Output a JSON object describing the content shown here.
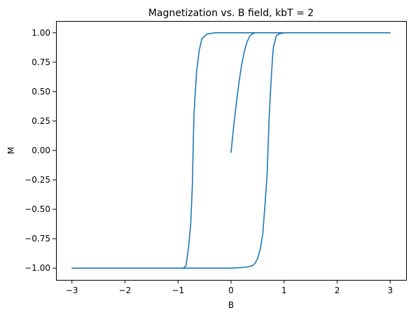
{
  "chart_data": {
    "type": "line",
    "title": "Magnetization vs. B field, kbT = 2",
    "xlabel": "B",
    "ylabel": "M",
    "xlim": [
      -3.3,
      3.3
    ],
    "ylim": [
      -1.1,
      1.1
    ],
    "grid": false,
    "xticks": [
      -3,
      -2,
      -1,
      0,
      1,
      2,
      3
    ],
    "xtick_labels": [
      "−3",
      "−2",
      "−1",
      "0",
      "1",
      "2",
      "3"
    ],
    "yticks": [
      -1.0,
      -0.75,
      -0.5,
      -0.25,
      0.0,
      0.25,
      0.5,
      0.75,
      1.0
    ],
    "ytick_labels": [
      "−1.00",
      "−0.75",
      "−0.50",
      "−0.25",
      "0.00",
      "0.25",
      "0.50",
      "0.75",
      "1.00"
    ],
    "series": [
      {
        "color": "#1f77b4",
        "x": [
          0.0,
          0.03,
          0.06,
          0.1,
          0.15,
          0.2,
          0.25,
          0.3,
          0.35,
          0.4,
          0.45,
          0.5,
          0.6,
          0.8,
          1.0,
          1.5,
          2.0,
          2.5,
          3.0,
          2.5,
          2.0,
          1.5,
          1.0,
          0.5,
          0.0,
          -0.3,
          -0.45,
          -0.55,
          -0.6,
          -0.65,
          -0.7,
          -0.73,
          -0.76,
          -0.8,
          -0.85,
          -0.9,
          -1.0,
          -1.5,
          -2.0,
          -2.5,
          -3.0,
          -2.5,
          -2.0,
          -1.5,
          -1.0,
          -0.5,
          0.0,
          0.2,
          0.3,
          0.4,
          0.45,
          0.5,
          0.55,
          0.6,
          0.65,
          0.68,
          0.7,
          0.72,
          0.75,
          0.78,
          0.8,
          0.85,
          0.9,
          1.0,
          1.5,
          2.0,
          2.5,
          3.0
        ],
        "y": [
          -0.02,
          0.12,
          0.25,
          0.4,
          0.58,
          0.73,
          0.84,
          0.92,
          0.97,
          0.99,
          1.0,
          1.0,
          1.0,
          1.0,
          1.0,
          1.0,
          1.0,
          1.0,
          1.0,
          1.0,
          1.0,
          1.0,
          1.0,
          1.0,
          1.0,
          1.0,
          0.99,
          0.95,
          0.85,
          0.67,
          0.3,
          -0.3,
          -0.62,
          -0.82,
          -0.98,
          -1.0,
          -1.0,
          -1.0,
          -1.0,
          -1.0,
          -1.0,
          -1.0,
          -1.0,
          -1.0,
          -1.0,
          -1.0,
          -1.0,
          -0.995,
          -0.99,
          -0.98,
          -0.96,
          -0.92,
          -0.84,
          -0.7,
          -0.4,
          -0.2,
          0.05,
          0.3,
          0.55,
          0.78,
          0.88,
          0.97,
          0.99,
          1.0,
          1.0,
          1.0,
          1.0,
          1.0
        ]
      }
    ]
  }
}
